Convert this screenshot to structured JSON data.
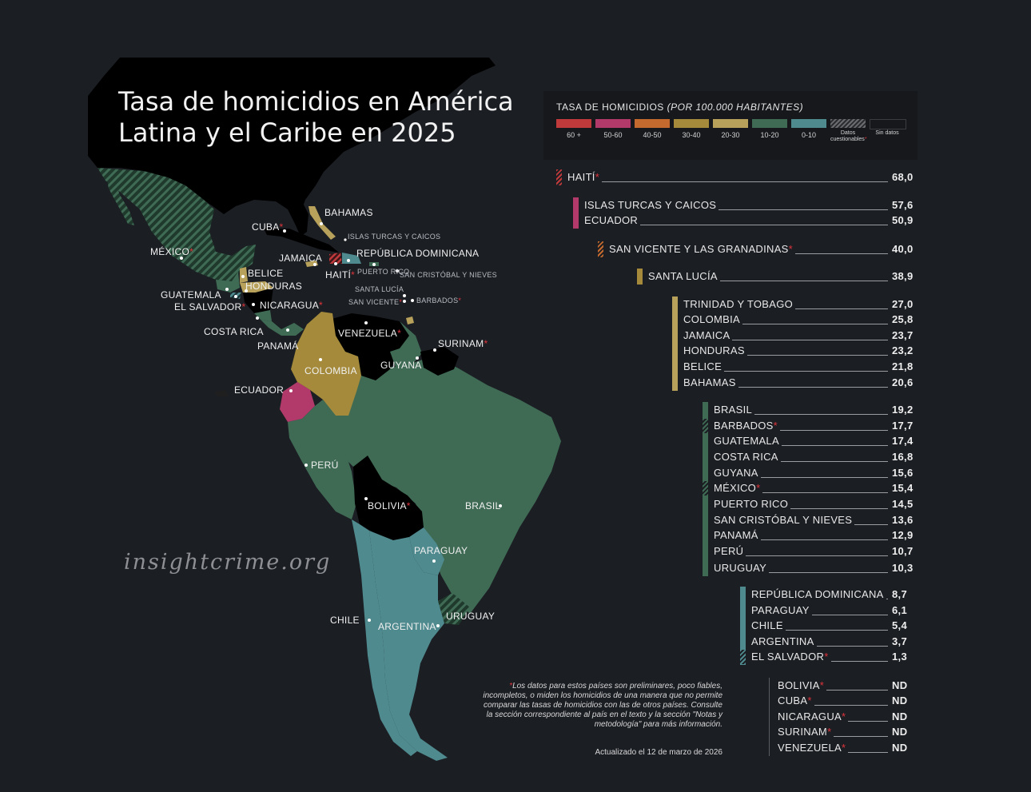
{
  "title": "Tasa de homicidios en América Latina y el Caribe en 2025",
  "watermark": "insightcrime.org",
  "colors": {
    "background": "#1b1e23",
    "land_nodata": "#000000",
    "r60plus": "#c0393b",
    "r50_60": "#b23a6b",
    "r40_50": "#c46a2e",
    "r30_40": "#a48a3a",
    "r20_30": "#b8a25b",
    "r10_20": "#3f6b55",
    "r0_10": "#4f8a8f",
    "asterisk": "#e0343c"
  },
  "legend": {
    "title": "TASA DE HOMICIDIOS",
    "subtitle": "(POR 100.000 HABITANTES)",
    "items": [
      {
        "label": "60 +",
        "color": "#c0393b"
      },
      {
        "label": "50-60",
        "color": "#b23a6b"
      },
      {
        "label": "40-50",
        "color": "#c46a2e"
      },
      {
        "label": "30-40",
        "color": "#a48a3a"
      },
      {
        "label": "20-30",
        "color": "#b8a25b"
      },
      {
        "label": "10-20",
        "color": "#3f6b55"
      },
      {
        "label": "0-10",
        "color": "#4f8a8f"
      },
      {
        "label": "Datos cuestionables",
        "color": "hatched"
      },
      {
        "label": "Sin datos",
        "color": "#16181c"
      }
    ]
  },
  "ranking": [
    {
      "name": "HAITÍ",
      "value": "68,0",
      "flag": true
    },
    {
      "name": "ISLAS TURCAS Y CAICOS",
      "value": "57,6",
      "flag": false
    },
    {
      "name": "ECUADOR",
      "value": "50,9",
      "flag": false
    },
    {
      "name": "SAN VICENTE Y LAS GRANADINAS",
      "value": "40,0",
      "flag": true
    },
    {
      "name": "SANTA LUCÍA",
      "value": "38,9",
      "flag": false
    },
    {
      "name": "TRINIDAD Y TOBAGO",
      "value": "27,0",
      "flag": false
    },
    {
      "name": "COLOMBIA",
      "value": "25,8",
      "flag": false
    },
    {
      "name": "JAMAICA",
      "value": "23,7",
      "flag": false
    },
    {
      "name": "HONDURAS",
      "value": "23,2",
      "flag": false
    },
    {
      "name": "BELICE",
      "value": "21,8",
      "flag": false
    },
    {
      "name": "BAHAMAS",
      "value": "20,6",
      "flag": false
    },
    {
      "name": "BRASIL",
      "value": "19,2",
      "flag": false
    },
    {
      "name": "BARBADOS",
      "value": "17,7",
      "flag": true
    },
    {
      "name": "GUATEMALA",
      "value": "17,4",
      "flag": false
    },
    {
      "name": "COSTA RICA",
      "value": "16,8",
      "flag": false
    },
    {
      "name": "GUYANA",
      "value": "15,6",
      "flag": false
    },
    {
      "name": "MÉXICO",
      "value": "15,4",
      "flag": true
    },
    {
      "name": "PUERTO RICO",
      "value": "14,5",
      "flag": false
    },
    {
      "name": "SAN CRISTÓBAL Y NIEVES",
      "value": "13,6",
      "flag": false
    },
    {
      "name": "PANAMÁ",
      "value": "12,9",
      "flag": false
    },
    {
      "name": "PERÚ",
      "value": "10,7",
      "flag": false
    },
    {
      "name": "URUGUAY",
      "value": "10,3",
      "flag": false
    },
    {
      "name": "REPÚBLICA DOMINICANA",
      "value": "8,7",
      "flag": false
    },
    {
      "name": "PARAGUAY",
      "value": "6,1",
      "flag": false
    },
    {
      "name": "CHILE",
      "value": "5,4",
      "flag": false
    },
    {
      "name": "ARGENTINA",
      "value": "3,7",
      "flag": false
    },
    {
      "name": "EL SALVADOR",
      "value": "1,3",
      "flag": true
    },
    {
      "name": "BOLIVIA",
      "value": "ND",
      "flag": true
    },
    {
      "name": "CUBA",
      "value": "ND",
      "flag": true
    },
    {
      "name": "NICARAGUA",
      "value": "ND",
      "flag": true
    },
    {
      "name": "SURINAM",
      "value": "ND",
      "flag": true
    },
    {
      "name": "VENEZUELA",
      "value": "ND",
      "flag": true
    }
  ],
  "map_labels": [
    {
      "name": "MÉXICO",
      "flag": true
    },
    {
      "name": "CUBA",
      "flag": true
    },
    {
      "name": "BAHAMAS",
      "flag": false
    },
    {
      "name": "ISLAS TURCAS Y CAICOS",
      "flag": false
    },
    {
      "name": "JAMAICA",
      "flag": false
    },
    {
      "name": "REPÚBLICA DOMINICANA",
      "flag": false
    },
    {
      "name": "HAITÍ",
      "flag": true
    },
    {
      "name": "PUERTO RICO",
      "flag": false
    },
    {
      "name": "SAN CRISTÓBAL Y NIEVES",
      "flag": false
    },
    {
      "name": "SANTA LUCÍA",
      "flag": false
    },
    {
      "name": "SAN VICENTE",
      "flag": true
    },
    {
      "name": "BARBADOS",
      "flag": true
    },
    {
      "name": "BELICE",
      "flag": false
    },
    {
      "name": "HONDURAS",
      "flag": false
    },
    {
      "name": "GUATEMALA",
      "flag": false
    },
    {
      "name": "EL SALVADOR",
      "flag": true
    },
    {
      "name": "NICARAGUA",
      "flag": true
    },
    {
      "name": "COSTA RICA",
      "flag": false
    },
    {
      "name": "PANAMÁ",
      "flag": false
    },
    {
      "name": "VENEZUELA",
      "flag": true
    },
    {
      "name": "SURINAM",
      "flag": true
    },
    {
      "name": "GUYANA",
      "flag": false
    },
    {
      "name": "COLOMBIA",
      "flag": false
    },
    {
      "name": "ECUADOR",
      "flag": false
    },
    {
      "name": "PERÚ",
      "flag": false
    },
    {
      "name": "BOLIVIA",
      "flag": true
    },
    {
      "name": "BRASIL",
      "flag": false
    },
    {
      "name": "PARAGUAY",
      "flag": false
    },
    {
      "name": "CHILE",
      "flag": false
    },
    {
      "name": "ARGENTINA",
      "flag": false
    },
    {
      "name": "URUGUAY",
      "flag": false
    }
  ],
  "footnote": "Los datos para estos países son preliminares, poco fiables, incompletos, o miden los homicidios de una manera que no permite comparar las tasas de homicidios con las de otros países. Consulte la sección correspondiente al país en el texto y la sección \"Notas y metodología\" para más información.",
  "updated": "Actualizado el 12 de marzo de 2026"
}
